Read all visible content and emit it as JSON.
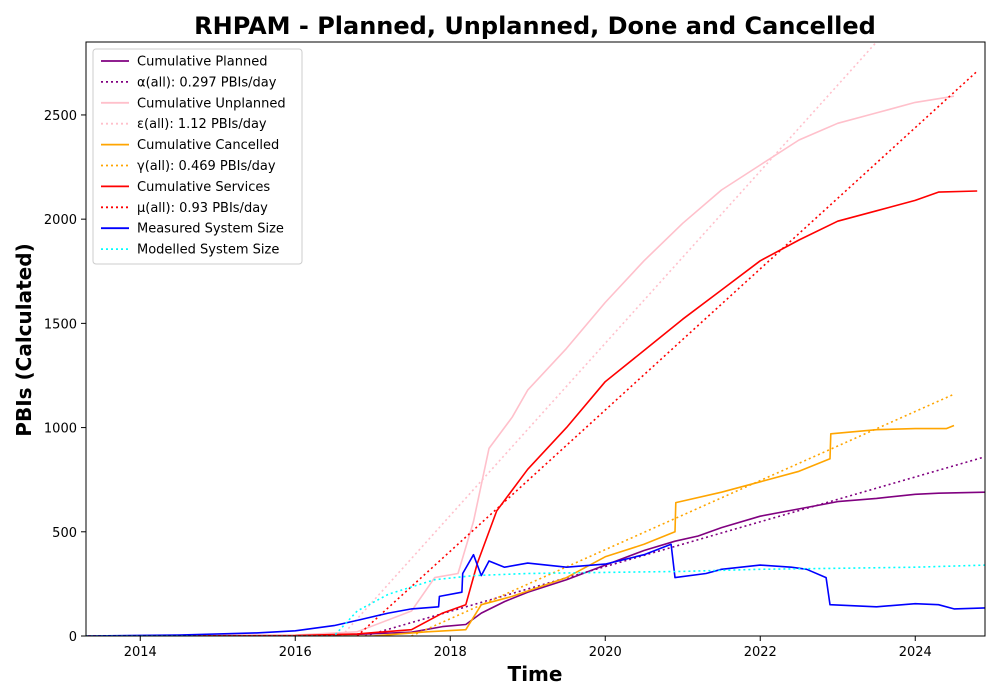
{
  "chart_data": {
    "type": "line",
    "title": "RHPAM - Planned, Unplanned, Done  and Cancelled",
    "xlabel": "Time",
    "ylabel": "PBIs (Calculated)",
    "xlim": [
      2013.3,
      2024.9
    ],
    "ylim": [
      0,
      2850
    ],
    "xticks": [
      2014,
      2016,
      2018,
      2020,
      2022,
      2024
    ],
    "yticks": [
      0,
      500,
      1000,
      1500,
      2000,
      2500
    ],
    "grid": false,
    "legend_position": "top-left",
    "series": [
      {
        "name": "Cumulative Planned",
        "color": "#800080",
        "style": "solid",
        "points": [
          [
            2013.3,
            0
          ],
          [
            2015.0,
            0
          ],
          [
            2016.0,
            2
          ],
          [
            2016.8,
            8
          ],
          [
            2017.5,
            18
          ],
          [
            2017.9,
            45
          ],
          [
            2018.2,
            55
          ],
          [
            2018.4,
            110
          ],
          [
            2018.7,
            165
          ],
          [
            2019.0,
            210
          ],
          [
            2019.5,
            270
          ],
          [
            2020.0,
            340
          ],
          [
            2020.5,
            410
          ],
          [
            2020.9,
            455
          ],
          [
            2021.2,
            480
          ],
          [
            2021.5,
            520
          ],
          [
            2022.0,
            575
          ],
          [
            2022.5,
            610
          ],
          [
            2023.0,
            645
          ],
          [
            2023.5,
            660
          ],
          [
            2024.0,
            680
          ],
          [
            2024.3,
            685
          ],
          [
            2024.9,
            690
          ]
        ]
      },
      {
        "name": "α(all): 0.297 PBIs/day",
        "color": "#800080",
        "style": "dotted",
        "points": [
          [
            2016.9,
            0
          ],
          [
            2024.9,
            860
          ]
        ]
      },
      {
        "name": "Cumulative Unplanned",
        "color": "#ffc0cb",
        "style": "solid",
        "points": [
          [
            2013.3,
            0
          ],
          [
            2016.0,
            5
          ],
          [
            2016.8,
            20
          ],
          [
            2017.5,
            120
          ],
          [
            2017.8,
            280
          ],
          [
            2018.1,
            300
          ],
          [
            2018.3,
            550
          ],
          [
            2018.5,
            900
          ],
          [
            2018.8,
            1050
          ],
          [
            2019.0,
            1180
          ],
          [
            2019.5,
            1380
          ],
          [
            2020.0,
            1600
          ],
          [
            2020.5,
            1800
          ],
          [
            2021.0,
            1980
          ],
          [
            2021.5,
            2140
          ],
          [
            2022.0,
            2260
          ],
          [
            2022.5,
            2380
          ],
          [
            2023.0,
            2460
          ],
          [
            2023.5,
            2510
          ],
          [
            2024.0,
            2560
          ],
          [
            2024.5,
            2590
          ]
        ]
      },
      {
        "name": "ε(all): 1.12 PBIs/day",
        "color": "#ffc0cb",
        "style": "dotted",
        "points": [
          [
            2016.6,
            0
          ],
          [
            2023.5,
            2850
          ]
        ]
      },
      {
        "name": "Cumulative Cancelled",
        "color": "#ffa500",
        "style": "solid",
        "points": [
          [
            2013.3,
            0
          ],
          [
            2017.0,
            0
          ],
          [
            2017.7,
            20
          ],
          [
            2018.2,
            30
          ],
          [
            2018.4,
            150
          ],
          [
            2018.8,
            190
          ],
          [
            2019.5,
            280
          ],
          [
            2020.0,
            380
          ],
          [
            2020.5,
            440
          ],
          [
            2020.9,
            500
          ],
          [
            2020.91,
            640
          ],
          [
            2021.5,
            690
          ],
          [
            2022.0,
            740
          ],
          [
            2022.5,
            790
          ],
          [
            2022.9,
            850
          ],
          [
            2022.91,
            970
          ],
          [
            2023.5,
            990
          ],
          [
            2024.0,
            995
          ],
          [
            2024.4,
            995
          ],
          [
            2024.5,
            1010
          ]
        ]
      },
      {
        "name": "γ(all): 0.469 PBIs/day",
        "color": "#ffa500",
        "style": "dotted",
        "points": [
          [
            2017.5,
            0
          ],
          [
            2024.5,
            1160
          ]
        ]
      },
      {
        "name": "Cumulative Services",
        "color": "#ff0000",
        "style": "solid",
        "points": [
          [
            2013.3,
            0
          ],
          [
            2016.0,
            2
          ],
          [
            2016.8,
            10
          ],
          [
            2017.5,
            30
          ],
          [
            2017.9,
            110
          ],
          [
            2018.2,
            150
          ],
          [
            2018.35,
            350
          ],
          [
            2018.6,
            600
          ],
          [
            2019.0,
            800
          ],
          [
            2019.5,
            1000
          ],
          [
            2020.0,
            1220
          ],
          [
            2020.5,
            1370
          ],
          [
            2021.0,
            1520
          ],
          [
            2021.5,
            1660
          ],
          [
            2022.0,
            1800
          ],
          [
            2022.5,
            1900
          ],
          [
            2023.0,
            1990
          ],
          [
            2023.5,
            2040
          ],
          [
            2024.0,
            2090
          ],
          [
            2024.3,
            2130
          ],
          [
            2024.8,
            2135
          ]
        ]
      },
      {
        "name": "μ(all): 0.93 PBIs/day",
        "color": "#ff0000",
        "style": "dotted",
        "points": [
          [
            2016.8,
            0
          ],
          [
            2024.8,
            2710
          ]
        ]
      },
      {
        "name": "Measured System Size",
        "color": "#0000ff",
        "style": "solid",
        "points": [
          [
            2013.3,
            0
          ],
          [
            2014.5,
            5
          ],
          [
            2015.5,
            15
          ],
          [
            2016.0,
            25
          ],
          [
            2016.5,
            50
          ],
          [
            2016.8,
            75
          ],
          [
            2017.2,
            110
          ],
          [
            2017.5,
            130
          ],
          [
            2017.85,
            140
          ],
          [
            2017.86,
            190
          ],
          [
            2018.15,
            210
          ],
          [
            2018.16,
            300
          ],
          [
            2018.3,
            390
          ],
          [
            2018.4,
            290
          ],
          [
            2018.5,
            360
          ],
          [
            2018.7,
            330
          ],
          [
            2019.0,
            350
          ],
          [
            2019.5,
            330
          ],
          [
            2020.0,
            345
          ],
          [
            2020.5,
            390
          ],
          [
            2020.85,
            440
          ],
          [
            2020.9,
            280
          ],
          [
            2021.3,
            300
          ],
          [
            2021.5,
            320
          ],
          [
            2022.0,
            340
          ],
          [
            2022.4,
            330
          ],
          [
            2022.6,
            320
          ],
          [
            2022.85,
            280
          ],
          [
            2022.9,
            150
          ],
          [
            2023.5,
            140
          ],
          [
            2024.0,
            155
          ],
          [
            2024.3,
            150
          ],
          [
            2024.5,
            130
          ],
          [
            2024.9,
            135
          ]
        ]
      },
      {
        "name": "Modelled System Size",
        "color": "#00ffff",
        "style": "dotted",
        "points": [
          [
            2013.3,
            0
          ],
          [
            2016.5,
            0
          ],
          [
            2016.8,
            120
          ],
          [
            2017.2,
            200
          ],
          [
            2017.8,
            270
          ],
          [
            2018.3,
            290
          ],
          [
            2019.0,
            300
          ],
          [
            2020.0,
            305
          ],
          [
            2021.0,
            310
          ],
          [
            2022.0,
            320
          ],
          [
            2023.0,
            325
          ],
          [
            2024.0,
            330
          ],
          [
            2024.9,
            340
          ]
        ]
      }
    ]
  }
}
